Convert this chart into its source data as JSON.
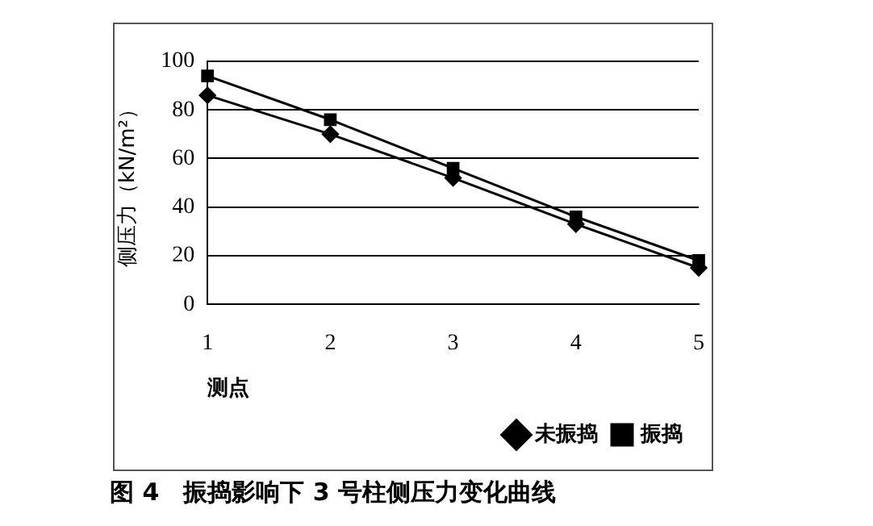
{
  "chart_data": {
    "type": "line",
    "title": "图 4　振捣影响下 3 号柱侧压力变化曲线",
    "xlabel": "测点",
    "ylabel": "侧压力（kN/m²）",
    "categories": [
      "1",
      "2",
      "3",
      "4",
      "5"
    ],
    "series": [
      {
        "name": "未振捣",
        "color": "#000000",
        "marker": "diamond",
        "values": [
          86,
          70,
          52,
          33,
          15
        ]
      },
      {
        "name": "振捣",
        "color": "#000000",
        "marker": "square",
        "values": [
          94,
          76,
          56,
          36,
          18
        ]
      }
    ],
    "ylim": [
      0,
      100
    ],
    "yticks": [
      0,
      20,
      40,
      60,
      80,
      100
    ],
    "grid": "y",
    "legend": "bottom",
    "line_style": "solid"
  }
}
